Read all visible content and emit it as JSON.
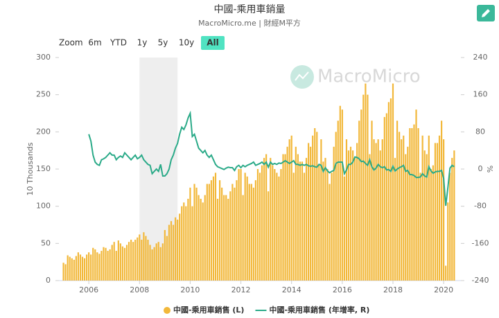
{
  "chart_data": {
    "type": "bar",
    "title": "中國-乘用車銷量",
    "subtitle": "MacroMicro.me | 財經M平方",
    "watermark": "MacroMicro",
    "zoom_label": "Zoom",
    "zoom_buttons": [
      "6m",
      "YTD",
      "1y",
      "5y",
      "10y",
      "All"
    ],
    "zoom_selected": 5,
    "y_label": "10 Thousands",
    "y2_label": "%",
    "shaded_range": [
      2008,
      2009.5
    ],
    "xlim": [
      2004.82,
      2020.68
    ],
    "xticks": [
      2006,
      2008,
      2010,
      2012,
      2014,
      2016,
      2018,
      2020
    ],
    "ylim": [
      0,
      300
    ],
    "yticks": [
      0,
      50,
      100,
      150,
      200,
      250,
      300
    ],
    "y2lim": [
      -240,
      240
    ],
    "y2ticks": [
      -240,
      -160,
      -80,
      0,
      80,
      160,
      240
    ],
    "x": [
      2005,
      2005.083,
      2005.167,
      2005.25,
      2005.333,
      2005.417,
      2005.5,
      2005.583,
      2005.667,
      2005.75,
      2005.833,
      2005.917,
      2006,
      2006.083,
      2006.167,
      2006.25,
      2006.333,
      2006.417,
      2006.5,
      2006.583,
      2006.667,
      2006.75,
      2006.833,
      2006.917,
      2007,
      2007.083,
      2007.167,
      2007.25,
      2007.333,
      2007.417,
      2007.5,
      2007.583,
      2007.667,
      2007.75,
      2007.833,
      2007.917,
      2008,
      2008.083,
      2008.167,
      2008.25,
      2008.333,
      2008.417,
      2008.5,
      2008.583,
      2008.667,
      2008.75,
      2008.833,
      2008.917,
      2009,
      2009.083,
      2009.167,
      2009.25,
      2009.333,
      2009.417,
      2009.5,
      2009.583,
      2009.667,
      2009.75,
      2009.833,
      2009.917,
      2010,
      2010.083,
      2010.167,
      2010.25,
      2010.333,
      2010.417,
      2010.5,
      2010.583,
      2010.667,
      2010.75,
      2010.833,
      2010.917,
      2011,
      2011.083,
      2011.167,
      2011.25,
      2011.333,
      2011.417,
      2011.5,
      2011.583,
      2011.667,
      2011.75,
      2011.833,
      2011.917,
      2012,
      2012.083,
      2012.167,
      2012.25,
      2012.333,
      2012.417,
      2012.5,
      2012.583,
      2012.667,
      2012.75,
      2012.833,
      2012.917,
      2013,
      2013.083,
      2013.167,
      2013.25,
      2013.333,
      2013.417,
      2013.5,
      2013.583,
      2013.667,
      2013.75,
      2013.833,
      2013.917,
      2014,
      2014.083,
      2014.167,
      2014.25,
      2014.333,
      2014.417,
      2014.5,
      2014.583,
      2014.667,
      2014.75,
      2014.833,
      2014.917,
      2015,
      2015.083,
      2015.167,
      2015.25,
      2015.333,
      2015.417,
      2015.5,
      2015.583,
      2015.667,
      2015.75,
      2015.833,
      2015.917,
      2016,
      2016.083,
      2016.167,
      2016.25,
      2016.333,
      2016.417,
      2016.5,
      2016.583,
      2016.667,
      2016.75,
      2016.833,
      2016.917,
      2017,
      2017.083,
      2017.167,
      2017.25,
      2017.333,
      2017.417,
      2017.5,
      2017.583,
      2017.667,
      2017.75,
      2017.833,
      2017.917,
      2018,
      2018.083,
      2018.167,
      2018.25,
      2018.333,
      2018.417,
      2018.5,
      2018.583,
      2018.667,
      2018.75,
      2018.833,
      2018.917,
      2019,
      2019.083,
      2019.167,
      2019.25,
      2019.333,
      2019.417,
      2019.5,
      2019.583,
      2019.667,
      2019.75,
      2019.833,
      2019.917,
      2020,
      2020.083,
      2020.167,
      2020.25,
      2020.333,
      2020.417
    ],
    "series": [
      {
        "name": "中國-乘用車銷售 (L)",
        "type": "bar",
        "color": "#f2b83a",
        "values": [
          24,
          22,
          34,
          32,
          30,
          28,
          33,
          38,
          35,
          32,
          30,
          35,
          38,
          35,
          44,
          42,
          38,
          36,
          40,
          45,
          44,
          40,
          42,
          48,
          52,
          40,
          54,
          50,
          46,
          44,
          48,
          52,
          55,
          52,
          55,
          58,
          62,
          55,
          65,
          60,
          55,
          48,
          42,
          45,
          50,
          52,
          45,
          50,
          68,
          60,
          75,
          80,
          75,
          85,
          82,
          90,
          100,
          105,
          100,
          110,
          125,
          100,
          130,
          125,
          115,
          110,
          105,
          115,
          130,
          130,
          135,
          140,
          145,
          110,
          135,
          125,
          115,
          115,
          110,
          120,
          130,
          125,
          135,
          150,
          150,
          115,
          145,
          140,
          130,
          130,
          125,
          135,
          150,
          145,
          155,
          165,
          170,
          120,
          165,
          155,
          150,
          145,
          140,
          150,
          170,
          170,
          180,
          190,
          195,
          145,
          180,
          170,
          160,
          160,
          145,
          165,
          185,
          180,
          195,
          205,
          200,
          155,
          190,
          160,
          165,
          150,
          130,
          145,
          180,
          200,
          215,
          235,
          230,
          140,
          190,
          175,
          180,
          175,
          165,
          185,
          215,
          230,
          250,
          265,
          250,
          170,
          215,
          190,
          185,
          190,
          175,
          190,
          220,
          225,
          240,
          245,
          265,
          165,
          215,
          200,
          190,
          195,
          170,
          180,
          205,
          205,
          210,
          230,
          205,
          145,
          195,
          175,
          170,
          195,
          150,
          155,
          185,
          185,
          195,
          215,
          190,
          20,
          105,
          145,
          165,
          175
        ]
      },
      {
        "name": "中國-乘用車銷售 (年增率, R)",
        "type": "line",
        "axis": "y2",
        "color": "#2aaa88",
        "values": [
          null,
          null,
          null,
          null,
          null,
          null,
          null,
          null,
          null,
          null,
          null,
          null,
          75,
          60,
          30,
          15,
          10,
          8,
          20,
          22,
          25,
          30,
          35,
          30,
          30,
          20,
          25,
          28,
          25,
          35,
          30,
          25,
          20,
          25,
          30,
          22,
          25,
          30,
          20,
          15,
          10,
          8,
          -10,
          -5,
          0,
          -5,
          10,
          -15,
          -15,
          -10,
          0,
          20,
          30,
          45,
          55,
          75,
          90,
          85,
          95,
          110,
          120,
          70,
          75,
          60,
          45,
          40,
          35,
          40,
          30,
          25,
          30,
          20,
          10,
          5,
          3,
          1,
          -1,
          2,
          4,
          3,
          3,
          -3,
          5,
          8,
          3,
          8,
          5,
          8,
          10,
          12,
          15,
          8,
          10,
          12,
          15,
          10,
          15,
          4,
          15,
          10,
          12,
          10,
          13,
          12,
          15,
          18,
          15,
          12,
          15,
          18,
          10,
          10,
          8,
          10,
          8,
          10,
          7,
          6,
          7,
          5,
          4,
          10,
          8,
          -5,
          3,
          -4,
          -8,
          -5,
          -3,
          12,
          15,
          15,
          15,
          -10,
          -2,
          10,
          10,
          15,
          26,
          25,
          22,
          16,
          17,
          12,
          8,
          20,
          5,
          -2,
          2,
          10,
          5,
          3,
          5,
          -2,
          -1,
          -5,
          6,
          -4,
          0,
          3,
          5,
          8,
          -5,
          -3,
          -12,
          -12,
          -14,
          -18,
          -18,
          -17,
          -10,
          -15,
          -17,
          5,
          -4,
          -9,
          -6,
          -5,
          -5,
          -3,
          -20,
          -79,
          -40,
          2,
          8,
          5
        ]
      }
    ]
  }
}
